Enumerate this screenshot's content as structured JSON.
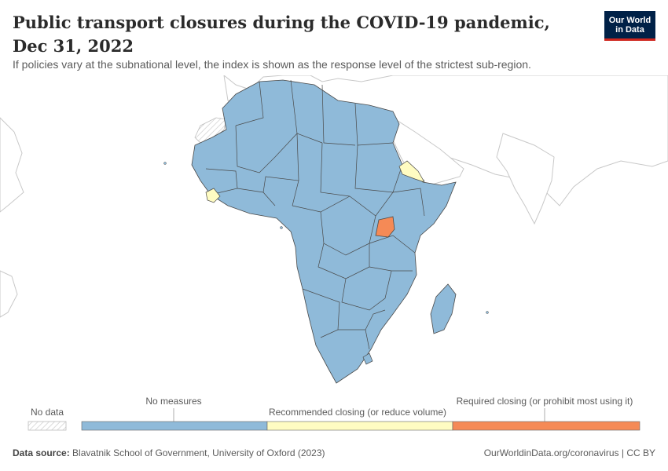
{
  "title": "Public transport closures during the COVID-19 pandemic, Dec 31, 2022",
  "subtitle": "If policies vary at the subnational level, the index is shown as the response level of the strictest sub-region.",
  "logo": {
    "line1": "Our World",
    "line2": "in Data"
  },
  "legend": {
    "no_data": "No data",
    "categories": [
      {
        "label": "No measures",
        "color": "#8fbad9"
      },
      {
        "label": "Recommended closing (or reduce volume)",
        "color": "#fffcc2"
      },
      {
        "label": "Required closing (or prohibit most using it)",
        "color": "#f58a56"
      }
    ]
  },
  "map_data": {
    "region": "Africa",
    "date": "Dec 31, 2022",
    "colors": {
      "no_measures": "#8fbad9",
      "recommended": "#fffcc2",
      "required": "#f58a56",
      "no_data_pattern": "#d9d9d9",
      "border": "#4a4a4a",
      "outline": "#c8c8c8"
    }
  },
  "footer": {
    "source_label": "Data source:",
    "source_text": "Blavatnik School of Government, University of Oxford (2023)",
    "link": "OurWorldinData.org/coronavirus | CC BY"
  }
}
